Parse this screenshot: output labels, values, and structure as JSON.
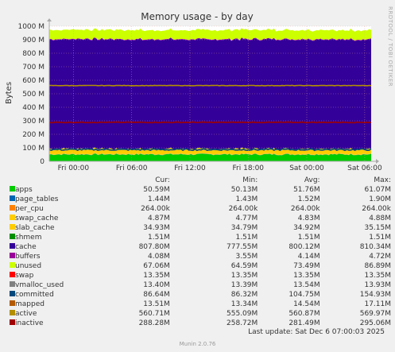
{
  "title": "Memory usage - by day",
  "ylabel": "Bytes",
  "side_label": "RRDTOOL / TOBI OETIKER",
  "footer": "Munin 2.0.76",
  "last_update": "Last update: Sat Dec  6 07:00:03 2025",
  "legend_headers": {
    "cur": "Cur:",
    "min": "Min:",
    "avg": "Avg:",
    "max": "Max:"
  },
  "legend": [
    {
      "name": "apps",
      "color": "#00cc00",
      "cur": "50.59M",
      "min": "50.13M",
      "avg": "51.76M",
      "max": "61.07M"
    },
    {
      "name": "page_tables",
      "color": "#0066b3",
      "cur": "1.44M",
      "min": "1.43M",
      "avg": "1.52M",
      "max": "1.90M"
    },
    {
      "name": "per_cpu",
      "color": "#ff8000",
      "cur": "264.00k",
      "min": "264.00k",
      "avg": "264.00k",
      "max": "264.00k"
    },
    {
      "name": "swap_cache",
      "color": "#ffcc00",
      "cur": "4.87M",
      "min": "4.77M",
      "avg": "4.83M",
      "max": "4.88M"
    },
    {
      "name": "slab_cache",
      "color": "#ffcc00",
      "cur": "34.93M",
      "min": "34.79M",
      "avg": "34.92M",
      "max": "35.15M"
    },
    {
      "name": "shmem",
      "color": "#008f00",
      "cur": "1.51M",
      "min": "1.51M",
      "avg": "1.51M",
      "max": "1.51M"
    },
    {
      "name": "cache",
      "color": "#330099",
      "cur": "807.80M",
      "min": "777.55M",
      "avg": "800.12M",
      "max": "810.34M"
    },
    {
      "name": "buffers",
      "color": "#990099",
      "cur": "4.08M",
      "min": "3.55M",
      "avg": "4.14M",
      "max": "4.72M"
    },
    {
      "name": "unused",
      "color": "#ccff00",
      "cur": "67.06M",
      "min": "64.59M",
      "avg": "73.49M",
      "max": "86.89M"
    },
    {
      "name": "swap",
      "color": "#ff0000",
      "cur": "13.35M",
      "min": "13.35M",
      "avg": "13.35M",
      "max": "13.35M"
    },
    {
      "name": "vmalloc_used",
      "color": "#808080",
      "cur": "13.40M",
      "min": "13.39M",
      "avg": "13.54M",
      "max": "13.93M"
    },
    {
      "name": "committed",
      "color": "#00487d",
      "cur": "86.64M",
      "min": "86.32M",
      "avg": "104.75M",
      "max": "154.93M"
    },
    {
      "name": "mapped",
      "color": "#b35a00",
      "cur": "13.51M",
      "min": "13.34M",
      "avg": "14.54M",
      "max": "17.11M"
    },
    {
      "name": "active",
      "color": "#b38f00",
      "cur": "560.71M",
      "min": "555.09M",
      "avg": "560.87M",
      "max": "569.97M"
    },
    {
      "name": "inactive",
      "color": "#a00000",
      "cur": "288.28M",
      "min": "258.72M",
      "avg": "281.49M",
      "max": "295.06M"
    }
  ],
  "chart_data": {
    "type": "area",
    "title": "Memory usage - by day",
    "xlabel": "",
    "ylabel": "Bytes",
    "ylim": [
      0,
      1000
    ],
    "y_unit": "M",
    "yticks": [
      "0",
      "100 M",
      "200 M",
      "300 M",
      "400 M",
      "500 M",
      "600 M",
      "700 M",
      "800 M",
      "900 M",
      "1000 M"
    ],
    "xticks": [
      "Fri 00:00",
      "Fri 06:00",
      "Fri 12:00",
      "Fri 18:00",
      "Sat 00:00",
      "Sat 06:00"
    ],
    "grid": true,
    "stacked_series_M": [
      {
        "name": "apps",
        "value": 50.6
      },
      {
        "name": "page_tables",
        "value": 1.4
      },
      {
        "name": "per_cpu",
        "value": 0.3
      },
      {
        "name": "swap_cache",
        "value": 4.9
      },
      {
        "name": "slab_cache",
        "value": 34.9
      },
      {
        "name": "shmem",
        "value": 1.5
      },
      {
        "name": "cache",
        "value": 807.8
      },
      {
        "name": "buffers",
        "value": 4.1
      },
      {
        "name": "unused",
        "value": 67.1
      }
    ],
    "line_series_M": [
      {
        "name": "committed",
        "value": 86.6
      },
      {
        "name": "active",
        "value": 560.7
      },
      {
        "name": "inactive",
        "value": 288.3
      }
    ]
  }
}
